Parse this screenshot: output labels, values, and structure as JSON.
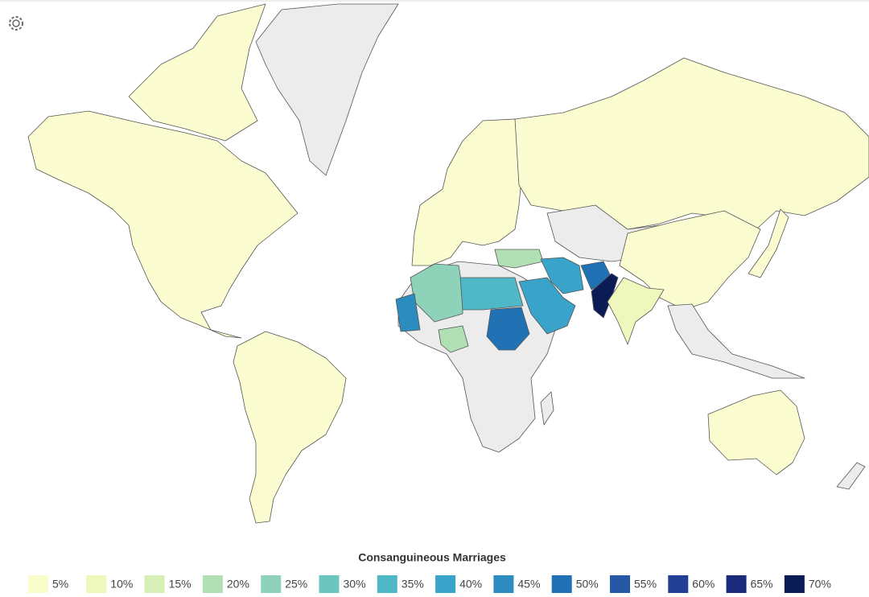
{
  "legend": {
    "title": "Consanguineous Marriages",
    "items": [
      {
        "label": "5%",
        "color": "#f9fdcb"
      },
      {
        "label": "10%",
        "color": "#eef8bd"
      },
      {
        "label": "15%",
        "color": "#d6efb6"
      },
      {
        "label": "20%",
        "color": "#b2e0b5"
      },
      {
        "label": "25%",
        "color": "#8fd2ba"
      },
      {
        "label": "30%",
        "color": "#6cc5be"
      },
      {
        "label": "35%",
        "color": "#4eb8c6"
      },
      {
        "label": "40%",
        "color": "#3aa3c9"
      },
      {
        "label": "45%",
        "color": "#2c8bbf"
      },
      {
        "label": "50%",
        "color": "#2171b5"
      },
      {
        "label": "55%",
        "color": "#2559a6"
      },
      {
        "label": "60%",
        "color": "#233f95"
      },
      {
        "label": "65%",
        "color": "#1b2a7c"
      },
      {
        "label": "70%",
        "color": "#0b1b55"
      }
    ]
  }
}
